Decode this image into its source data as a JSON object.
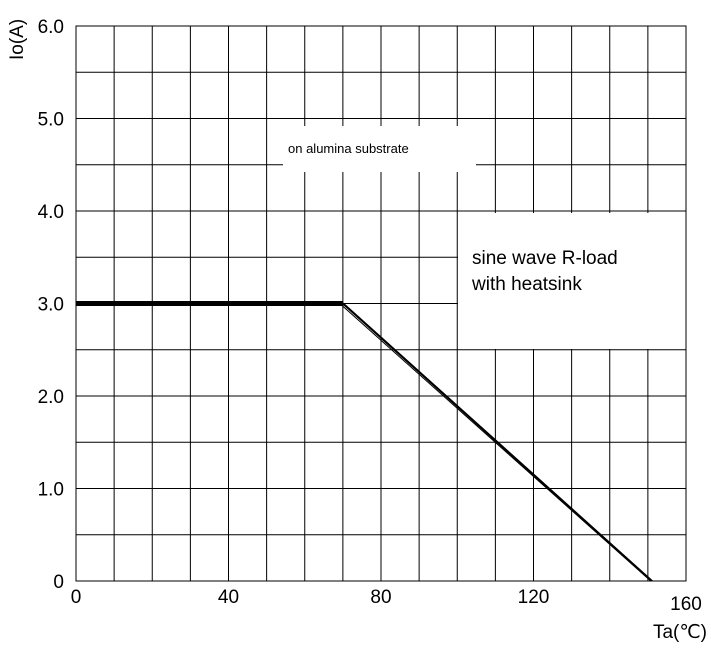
{
  "chart_data": {
    "type": "line",
    "xlabel": "Ta(℃)",
    "ylabel": "Io(A)",
    "xlim": [
      0,
      160
    ],
    "ylim": [
      0,
      6.0
    ],
    "x_ticks": [
      "0",
      "40",
      "80",
      "120",
      "160"
    ],
    "y_ticks": [
      "0",
      "1.0",
      "2.0",
      "3.0",
      "4.0",
      "5.0",
      "6.0"
    ],
    "grid": true,
    "annotations": [
      "on alumina substrate",
      "sine wave R-load",
      "with heatsink"
    ],
    "series": [
      {
        "x": [
          0,
          70,
          151
        ],
        "y": [
          3.0,
          3.0,
          0
        ],
        "color": "#000000"
      }
    ]
  }
}
